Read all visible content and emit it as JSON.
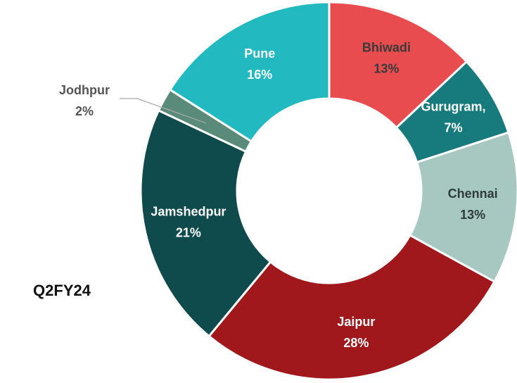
{
  "chart_data": {
    "type": "donut",
    "title": "Q2FY24",
    "categories": [
      "Bhiwadi",
      "Gurugram,",
      "Chennai",
      "Jaipur",
      "Jamshedpur",
      "Jodhpur",
      "Pune"
    ],
    "values": [
      13,
      7,
      13,
      28,
      21,
      2,
      16
    ],
    "value_labels": [
      "13%",
      "7%",
      "13%",
      "28%",
      "21%",
      "2%",
      "16%"
    ],
    "colors": [
      "#e84c4f",
      "#177a7d",
      "#a7c8c1",
      "#a0181b",
      "#0f4a4d",
      "#5a8a7a",
      "#22b9c0"
    ]
  }
}
